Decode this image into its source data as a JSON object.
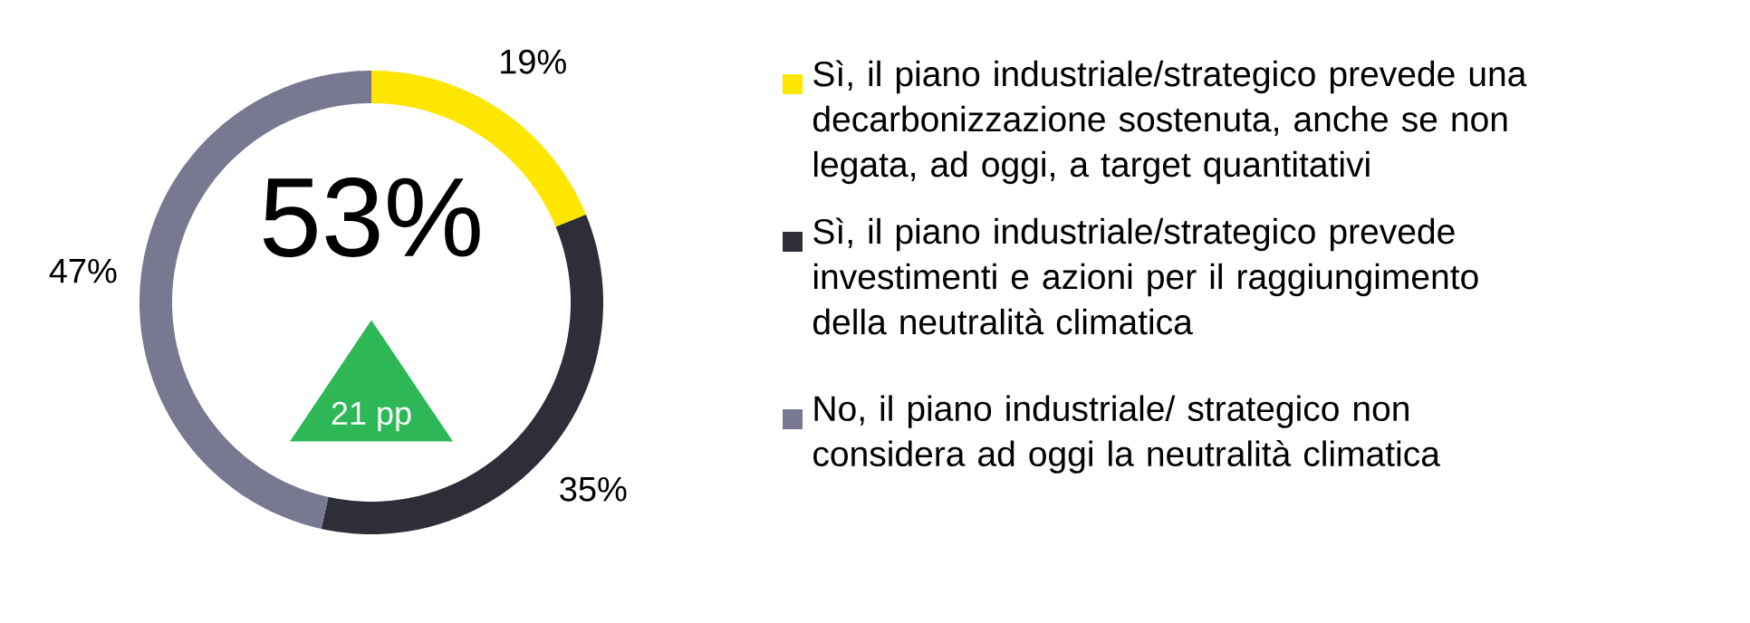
{
  "chart_data": {
    "type": "donut",
    "categories": [
      "Sì, il piano industriale/strategico prevede una decarbonizzazione sostenuta, anche se non legata, ad oggi, a target quantitativi",
      "Sì, il piano industriale/strategico prevede investimenti e azioni per il raggiungimento della neutralità climatica",
      "No, il piano industriale/ strategico non considera ad oggi la neutralità climatica"
    ],
    "values": [
      19,
      35,
      47
    ],
    "colors": [
      "#ffe600",
      "#2e2e38",
      "#787890"
    ],
    "value_labels": [
      "19%",
      "35%",
      "47%"
    ],
    "legend": "right",
    "annotations": [
      "53%",
      "21 pp"
    ]
  }
}
